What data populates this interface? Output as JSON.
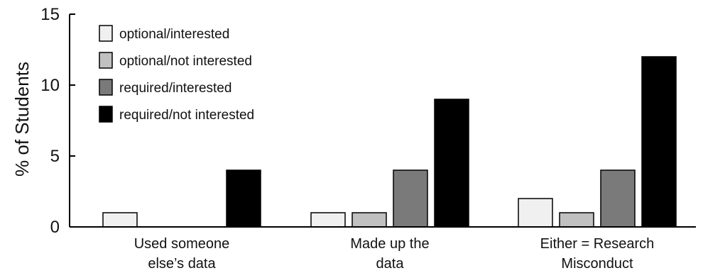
{
  "chart_data": {
    "type": "bar",
    "ylabel": "% of Students",
    "xlabel": "",
    "ylim": [
      0,
      15
    ],
    "yticks": [
      0,
      5,
      10,
      15
    ],
    "categories": [
      [
        "Used someone",
        "else’s data"
      ],
      [
        "Made up the",
        "data"
      ],
      [
        "Either = Research",
        "Misconduct"
      ]
    ],
    "series": [
      {
        "name": "optional/interested",
        "color": "#f0f0f0",
        "values": [
          1,
          1,
          2
        ]
      },
      {
        "name": "optional/not interested",
        "color": "#c0c0c0",
        "values": [
          0,
          1,
          1
        ]
      },
      {
        "name": "required/interested",
        "color": "#7a7a7a",
        "values": [
          0,
          4,
          4
        ]
      },
      {
        "name": "required/not interested",
        "color": "#000000",
        "values": [
          4,
          9,
          12
        ]
      }
    ],
    "legend_position": "top-left",
    "grid": false
  }
}
